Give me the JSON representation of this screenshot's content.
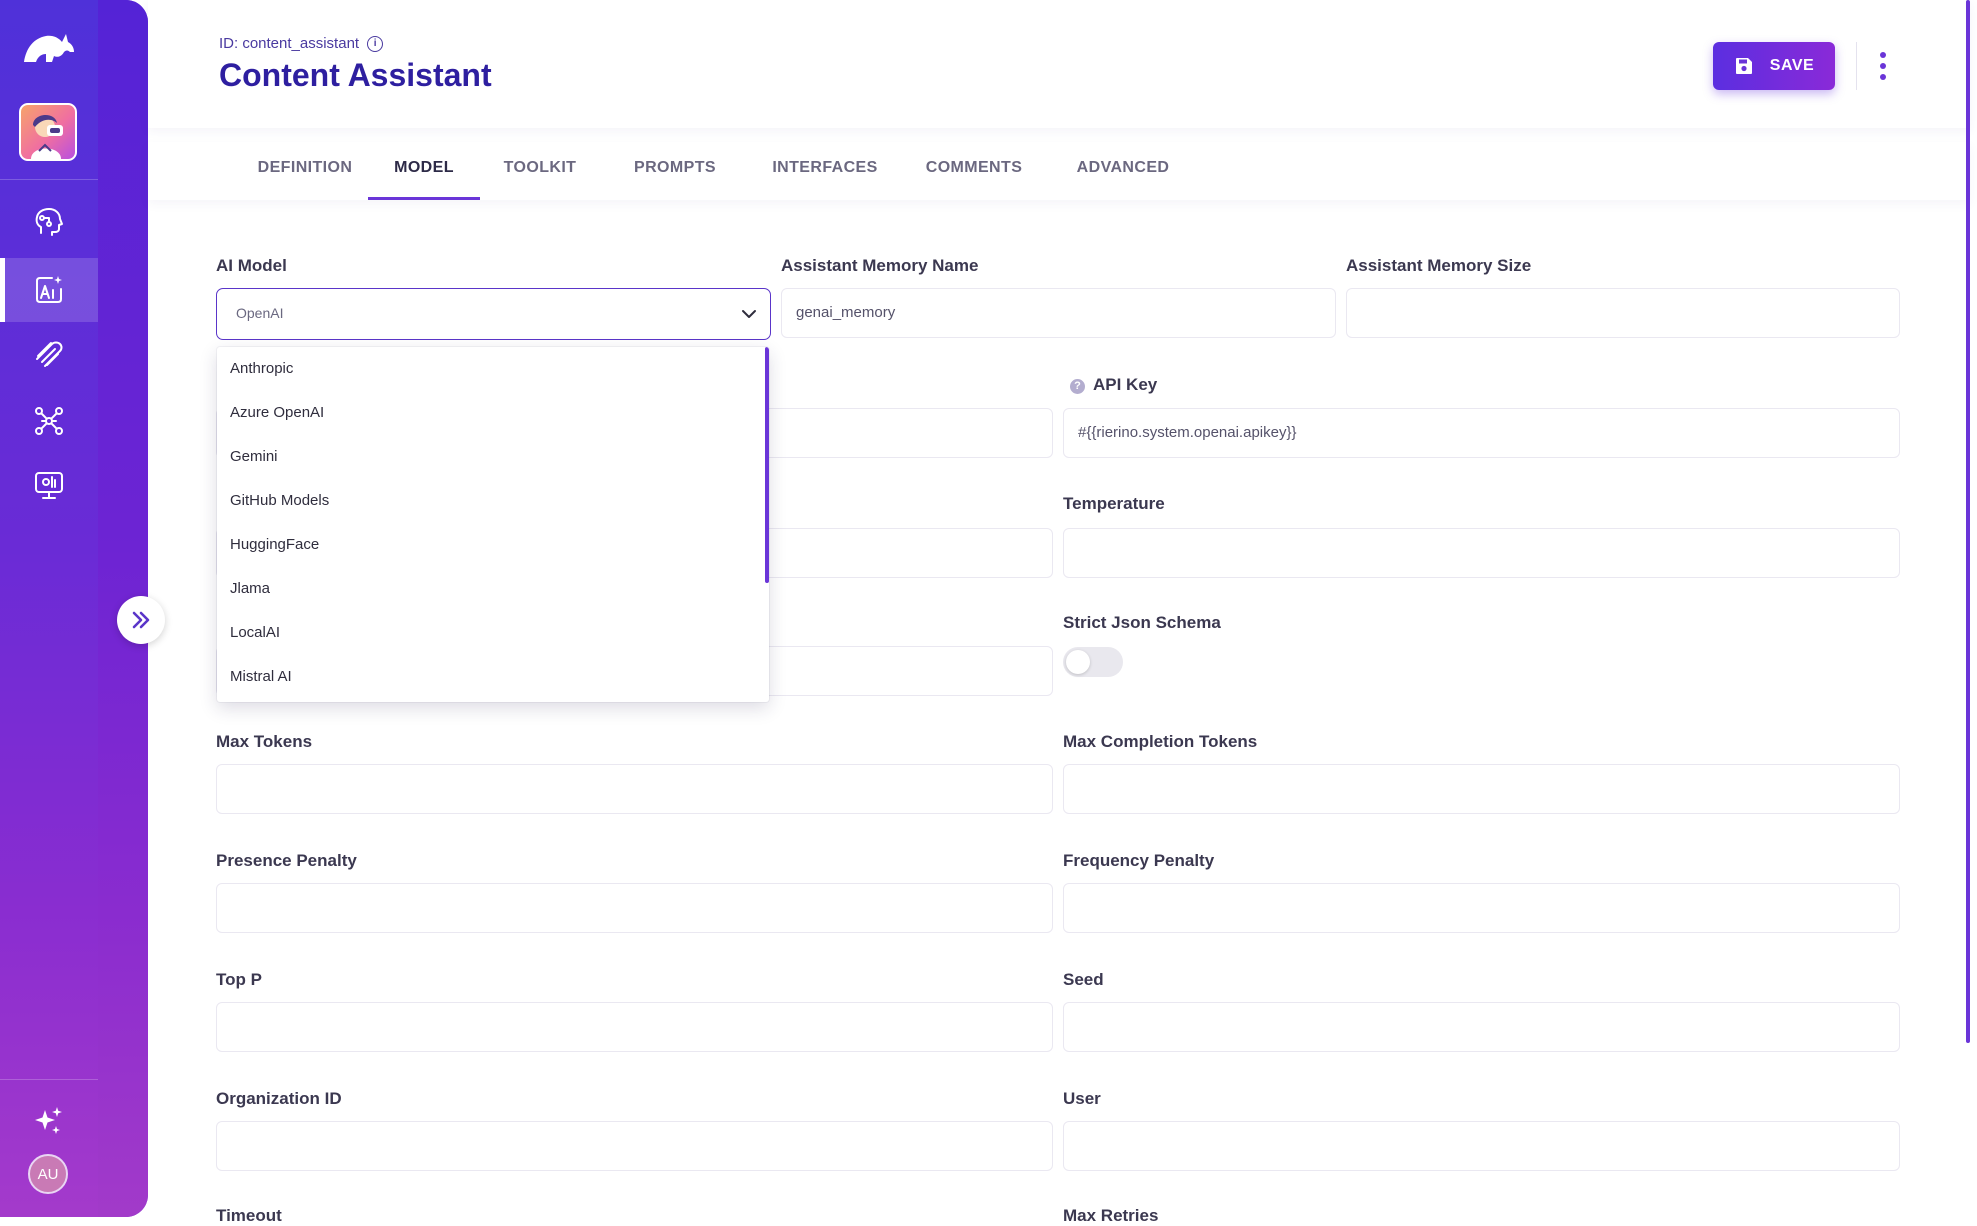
{
  "sidebar": {
    "nav": [
      {
        "name": "agents-icon"
      },
      {
        "name": "ai-assistant-icon",
        "active": true
      },
      {
        "name": "prompts-icon"
      },
      {
        "name": "network-icon"
      },
      {
        "name": "monitor-icon"
      }
    ],
    "user_initials": "AU"
  },
  "header": {
    "id_text": "ID: content_assistant",
    "title": "Content Assistant",
    "save_label": "SAVE"
  },
  "tabs": [
    {
      "label": "DEFINITION"
    },
    {
      "label": "MODEL",
      "active": true
    },
    {
      "label": "TOOLKIT"
    },
    {
      "label": "PROMPTS"
    },
    {
      "label": "INTERFACES"
    },
    {
      "label": "COMMENTS"
    },
    {
      "label": "ADVANCED"
    }
  ],
  "form": {
    "ai_model": {
      "label": "AI Model",
      "value": "OpenAI"
    },
    "memory_name": {
      "label": "Assistant Memory Name",
      "value": "genai_memory"
    },
    "memory_size": {
      "label": "Assistant Memory Size",
      "value": ""
    },
    "api_key": {
      "label": "API Key",
      "value": "#{{rierino.system.openai.apikey}}"
    },
    "temperature": {
      "label": "Temperature"
    },
    "strict_json_schema": {
      "label": "Strict Json Schema",
      "on": false
    },
    "max_tokens": {
      "label": "Max Tokens"
    },
    "max_completion_tokens": {
      "label": "Max Completion Tokens"
    },
    "presence_penalty": {
      "label": "Presence Penalty"
    },
    "frequency_penalty": {
      "label": "Frequency Penalty"
    },
    "top_p": {
      "label": "Top P"
    },
    "seed": {
      "label": "Seed"
    },
    "organization_id": {
      "label": "Organization ID"
    },
    "user": {
      "label": "User"
    },
    "timeout": {
      "label": "Timeout"
    },
    "max_retries": {
      "label": "Max Retries"
    }
  },
  "dropdown": {
    "options": [
      "Anthropic",
      "Azure OpenAI",
      "Gemini",
      "GitHub Models",
      "HuggingFace",
      "Jlama",
      "LocalAI",
      "Mistral AI"
    ]
  },
  "colors": {
    "accent": "#6a35d8",
    "title": "#2e1fa0",
    "sidebar_top": "#4f31d9",
    "sidebar_bottom": "#a43acb"
  }
}
